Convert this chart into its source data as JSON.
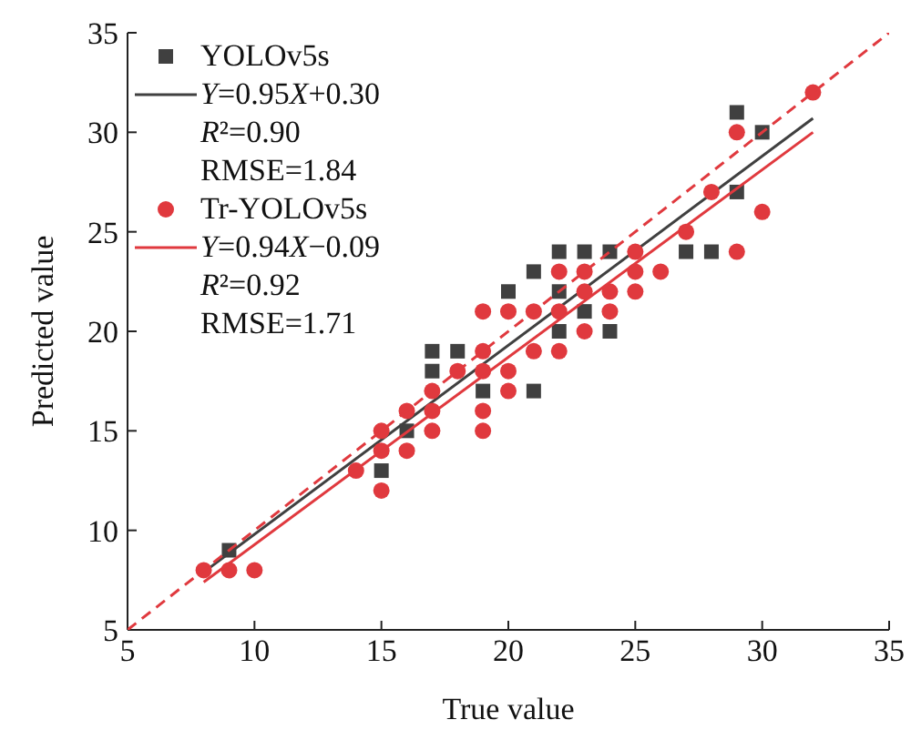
{
  "chart_data": {
    "type": "scatter",
    "xlabel": "True value",
    "ylabel": "Predicted value",
    "xlim": [
      5,
      35
    ],
    "ylim": [
      5,
      35
    ],
    "xticks": [
      5,
      10,
      15,
      20,
      25,
      30,
      35
    ],
    "yticks": [
      5,
      10,
      15,
      20,
      25,
      30,
      35
    ],
    "grid": false,
    "legend": "top left",
    "annotations": [
      "R²=0.90",
      "RMSE=1.84",
      "R²=0.92",
      "RMSE=1.71"
    ],
    "series": [
      {
        "name": "YOLOv5s",
        "type": "scatter",
        "marker": "square",
        "color": "#404040",
        "x": [
          9,
          15,
          16,
          17,
          17,
          18,
          19,
          20,
          21,
          21,
          22,
          22,
          22,
          23,
          23,
          24,
          24,
          27,
          28,
          29,
          29,
          30
        ],
        "values": [
          9,
          13,
          15,
          18,
          19,
          19,
          17,
          22,
          17,
          23,
          20,
          22,
          24,
          21,
          24,
          20,
          24,
          24,
          24,
          27,
          31,
          30
        ]
      },
      {
        "name": "Y=0.95X+0.30",
        "type": "line",
        "line_style": "solid",
        "color": "#404040",
        "x": [
          8,
          32
        ],
        "values": [
          7.9,
          30.7
        ]
      },
      {
        "name": "Tr-YOLOv5s",
        "type": "scatter",
        "marker": "circle",
        "color": "#e0393e",
        "x": [
          8,
          9,
          10,
          14,
          15,
          15,
          15,
          16,
          16,
          17,
          17,
          17,
          18,
          19,
          19,
          19,
          19,
          19,
          20,
          20,
          20,
          21,
          21,
          22,
          22,
          22,
          23,
          23,
          23,
          24,
          24,
          25,
          25,
          25,
          26,
          27,
          28,
          29,
          29,
          30,
          32
        ],
        "values": [
          8,
          8,
          8,
          13,
          12,
          14,
          15,
          14,
          16,
          15,
          16,
          17,
          18,
          15,
          16,
          18,
          19,
          21,
          17,
          18,
          21,
          19,
          21,
          19,
          21,
          23,
          20,
          22,
          23,
          21,
          22,
          22,
          23,
          24,
          23,
          25,
          27,
          24,
          30,
          26,
          32
        ]
      },
      {
        "name": "Y=0.94X−0.09",
        "type": "line",
        "line_style": "solid",
        "color": "#e0393e",
        "x": [
          8,
          32
        ],
        "values": [
          7.4,
          30.0
        ]
      },
      {
        "type": "line",
        "line_style": "dashed",
        "color": "#e0393e",
        "x": [
          5,
          35
        ],
        "values": [
          5,
          35
        ]
      }
    ]
  }
}
